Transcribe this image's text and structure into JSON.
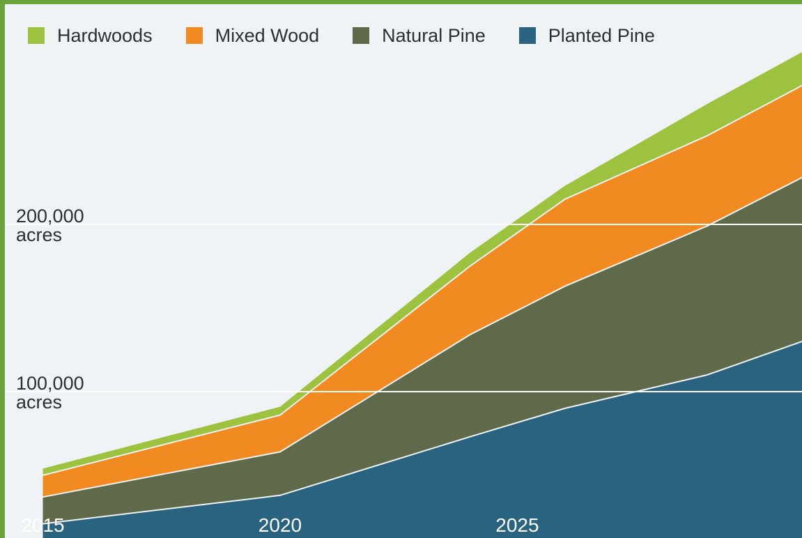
{
  "chart_data": {
    "type": "area",
    "stacked": true,
    "title": "",
    "xlabel": "",
    "ylabel": "",
    "x": [
      2015,
      2020,
      2024,
      2026,
      2029,
      2031
    ],
    "series": [
      {
        "name": "Planted Pine",
        "color": "#29637f",
        "values": [
          21000,
          38000,
          73000,
          90000,
          110000,
          130000
        ]
      },
      {
        "name": "Natural Pine",
        "color": "#5f6a4b",
        "values": [
          16000,
          26000,
          61000,
          73000,
          89000,
          98000
        ]
      },
      {
        "name": "Mixed Wood",
        "color": "#f28a22",
        "values": [
          13000,
          22000,
          41000,
          52000,
          54000,
          55000
        ]
      },
      {
        "name": "Hardwoods",
        "color": "#9cc23f",
        "values": [
          4000,
          5000,
          8000,
          8000,
          19000,
          20000
        ]
      }
    ],
    "ylim": [
      0,
      300000
    ],
    "xlim": [
      2014.2,
      2031
    ],
    "y_gridlines": [
      100000,
      200000
    ],
    "y_tick_labels": [
      {
        "value": 100000,
        "line1": "100,000",
        "line2": "acres"
      },
      {
        "value": 200000,
        "line1": "200,000",
        "line2": "acres"
      }
    ],
    "x_tick_labels": [
      {
        "value": 2015,
        "label": "2015"
      },
      {
        "value": 2020,
        "label": "2020"
      },
      {
        "value": 2025,
        "label": "2025"
      }
    ],
    "legend_position": "top",
    "grid": true
  }
}
